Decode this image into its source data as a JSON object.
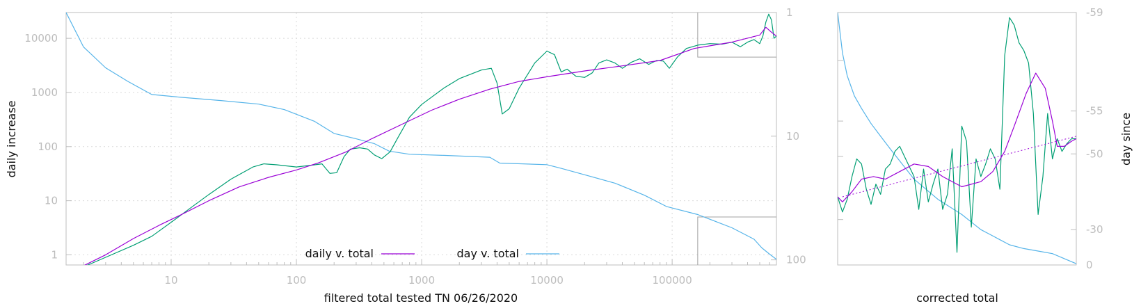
{
  "colors": {
    "daily": "#9a00d6",
    "day": "#56b4e9",
    "raw": "#009e73",
    "frame": "#bdbdbd"
  },
  "chart_data": [
    {
      "type": "line",
      "xlabel": "filtered total tested TN 06/26/2020",
      "ylabel": "daily increase",
      "y2label": "",
      "xscale": "log",
      "yscale": "log",
      "y2scale": "log",
      "xlim": [
        1.45,
        680000
      ],
      "ylim": [
        0.65,
        30000
      ],
      "y2lim": [
        1,
        110
      ],
      "y2reversed": true,
      "xticks": [
        "10",
        "100",
        "1000",
        "10000",
        "100000"
      ],
      "xtick_values": [
        10,
        100,
        1000,
        10000,
        100000
      ],
      "yticks": [
        "1",
        "10",
        "100",
        "1000",
        "10000"
      ],
      "ytick_values": [
        1,
        10,
        100,
        1000,
        10000
      ],
      "y2ticks": [
        "1",
        "10",
        "100"
      ],
      "y2tick_values": [
        1,
        10,
        100
      ],
      "grid": true,
      "legend_position": "bottom-center",
      "series": [
        {
          "name": "daily v. total",
          "axis": "y",
          "color_key": "daily",
          "x": [
            2,
            3,
            5,
            8,
            12,
            20,
            35,
            60,
            100,
            150,
            250,
            400,
            700,
            1200,
            2000,
            3500,
            6000,
            10000,
            20000,
            40000,
            80000,
            150000,
            300000,
            500000,
            560000,
            620000,
            680000
          ],
          "y": [
            0.63,
            1.0,
            2.0,
            3.5,
            5.5,
            10,
            18,
            27,
            37,
            50,
            80,
            140,
            260,
            470,
            750,
            1150,
            1600,
            1950,
            2500,
            3100,
            3900,
            6500,
            8500,
            11500,
            16000,
            13000,
            11000
          ]
        },
        {
          "name": "",
          "axis": "y",
          "color_key": "raw",
          "x": [
            2,
            3,
            5,
            7,
            10,
            15,
            20,
            30,
            45,
            55,
            70,
            100,
            140,
            160,
            185,
            210,
            240,
            270,
            320,
            370,
            420,
            480,
            560,
            650,
            800,
            1000,
            1500,
            2000,
            3000,
            3600,
            4000,
            4400,
            5000,
            6000,
            8000,
            10000,
            11500,
            13000,
            14500,
            17000,
            20000,
            23000,
            26000,
            30000,
            35000,
            40000,
            47000,
            55000,
            65000,
            75000,
            85000,
            95000,
            110000,
            130000,
            160000,
            200000,
            250000,
            300000,
            350000,
            400000,
            450000,
            500000,
            530000,
            560000,
            590000,
            620000,
            650000,
            680000
          ],
          "y": [
            0.6,
            0.9,
            1.5,
            2.2,
            4,
            8,
            13,
            25,
            42,
            48,
            46,
            42,
            46,
            48,
            32,
            33,
            65,
            90,
            95,
            90,
            70,
            60,
            80,
            150,
            350,
            600,
            1200,
            1800,
            2600,
            2800,
            1500,
            400,
            500,
            1200,
            3500,
            5800,
            5000,
            2400,
            2700,
            2000,
            1900,
            2300,
            3500,
            4000,
            3500,
            2800,
            3600,
            4200,
            3300,
            3900,
            3800,
            2800,
            4500,
            6500,
            7500,
            8000,
            7800,
            8500,
            7000,
            8500,
            9500,
            8000,
            11000,
            20000,
            28000,
            22000,
            10000,
            11000
          ]
        },
        {
          "name": "day v. total",
          "axis": "y2",
          "color_key": "day",
          "x": [
            1.45,
            2,
            3,
            4.5,
            7,
            12,
            25,
            50,
            80,
            140,
            200,
            300,
            420,
            550,
            800,
            1500,
            3500,
            4200,
            10000,
            13000,
            20000,
            35000,
            60000,
            90000,
            160000,
            300000,
            450000,
            520000,
            600000,
            680000
          ],
          "y2": [
            1,
            1.9,
            2.8,
            3.6,
            4.6,
            4.85,
            5.15,
            5.5,
            6.1,
            7.6,
            9.5,
            10.5,
            11.5,
            13.2,
            14,
            14.3,
            14.8,
            16.5,
            17,
            18.2,
            20.5,
            24,
            30,
            37,
            43,
            55,
            68,
            80,
            90,
            99
          ]
        }
      ],
      "inset_marker": {
        "xrange": [
          160000,
          680000
        ],
        "yrange": [
          4500,
          30000
        ]
      },
      "inset_marker2": {
        "xrange": [
          160000,
          680000
        ],
        "y2": 45
      }
    },
    {
      "type": "line",
      "xlabel": "corrected total",
      "ylabel": "",
      "y2label": "day since",
      "xlim": [
        0,
        1
      ],
      "ylim": [
        0,
        1
      ],
      "y2ticks": [
        "-59",
        "-55",
        "-50",
        "-30",
        "0"
      ],
      "grid": false,
      "series": [
        {
          "name": "",
          "color_key": "daily",
          "x": [
            0,
            0.02,
            0.06,
            0.1,
            0.15,
            0.2,
            0.26,
            0.32,
            0.38,
            0.44,
            0.52,
            0.6,
            0.65,
            0.7,
            0.74,
            0.79,
            0.83,
            0.87,
            0.9,
            0.92,
            0.95,
            0.98,
            1
          ],
          "y": [
            0.27,
            0.25,
            0.29,
            0.34,
            0.35,
            0.34,
            0.37,
            0.4,
            0.39,
            0.35,
            0.31,
            0.33,
            0.37,
            0.45,
            0.55,
            0.68,
            0.76,
            0.7,
            0.57,
            0.47,
            0.47,
            0.49,
            0.5
          ]
        },
        {
          "name": "",
          "color_key": "daily",
          "dashed": true,
          "x": [
            0.02,
            1
          ],
          "y": [
            0.27,
            0.51
          ]
        },
        {
          "name": "",
          "color_key": "raw",
          "x": [
            0,
            0.02,
            0.04,
            0.06,
            0.08,
            0.1,
            0.12,
            0.14,
            0.16,
            0.18,
            0.2,
            0.22,
            0.24,
            0.26,
            0.28,
            0.32,
            0.34,
            0.36,
            0.38,
            0.4,
            0.42,
            0.44,
            0.46,
            0.48,
            0.5,
            0.52,
            0.54,
            0.56,
            0.58,
            0.6,
            0.62,
            0.64,
            0.66,
            0.68,
            0.7,
            0.72,
            0.74,
            0.76,
            0.78,
            0.8,
            0.82,
            0.84,
            0.86,
            0.88,
            0.9,
            0.92,
            0.94,
            0.96,
            0.98,
            1
          ],
          "y": [
            0.27,
            0.21,
            0.26,
            0.35,
            0.42,
            0.4,
            0.3,
            0.24,
            0.32,
            0.28,
            0.38,
            0.4,
            0.45,
            0.47,
            0.43,
            0.35,
            0.22,
            0.38,
            0.25,
            0.32,
            0.38,
            0.22,
            0.28,
            0.46,
            0.05,
            0.55,
            0.49,
            0.15,
            0.42,
            0.35,
            0.4,
            0.46,
            0.42,
            0.3,
            0.83,
            0.98,
            0.95,
            0.88,
            0.85,
            0.8,
            0.6,
            0.2,
            0.35,
            0.6,
            0.42,
            0.5,
            0.45,
            0.48,
            0.5,
            0.5
          ]
        },
        {
          "name": "",
          "color_key": "day",
          "x": [
            0,
            0.02,
            0.04,
            0.07,
            0.1,
            0.14,
            0.18,
            0.22,
            0.27,
            0.32,
            0.37,
            0.42,
            0.47,
            0.52,
            0.56,
            0.6,
            0.64,
            0.68,
            0.72,
            0.78,
            0.84,
            0.9,
            0.95,
            1
          ],
          "y": [
            1.0,
            0.84,
            0.75,
            0.67,
            0.62,
            0.56,
            0.51,
            0.46,
            0.4,
            0.34,
            0.3,
            0.26,
            0.23,
            0.2,
            0.17,
            0.14,
            0.12,
            0.1,
            0.08,
            0.065,
            0.055,
            0.045,
            0.025,
            0.005
          ]
        }
      ]
    }
  ]
}
